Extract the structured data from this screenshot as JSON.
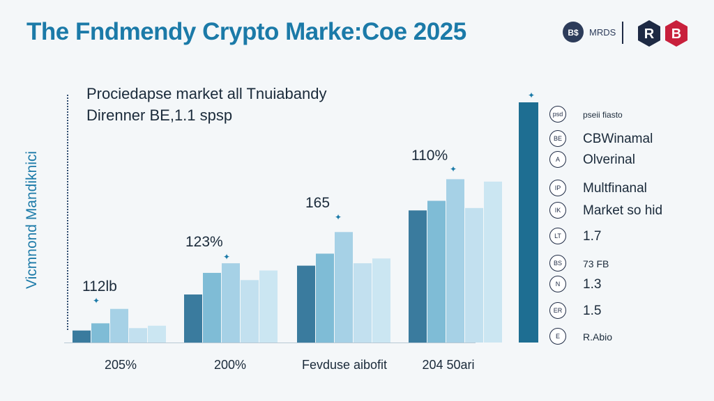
{
  "title": "The Fndmendy Crypto Marke:Coe 2025",
  "brand": {
    "badge_text": "B$",
    "name": "MRDS",
    "logo_r": "R",
    "logo_b": "B",
    "colors": {
      "r": "#1e2a44",
      "b": "#c8203c",
      "badge": "#2d3c5a"
    }
  },
  "subtitle_lines": [
    "Prociedapse market all Tnuiabandy",
    "Direnner BE,1.1 spsp"
  ],
  "y_axis_label": "Vicmnond Mandiknici",
  "legend": {
    "items": [
      {
        "icon": "psd",
        "label": "pseii fiasto",
        "size": "small"
      },
      {
        "icon": "BE",
        "label": "CBWinamal",
        "size": "normal"
      },
      {
        "icon": "A",
        "label": "Olverinal",
        "size": "normal"
      },
      {
        "icon": "IP",
        "label": "Multfinanal",
        "size": "normal"
      },
      {
        "icon": "IK",
        "label": "Market so hid",
        "size": "normal"
      },
      {
        "icon": "LT",
        "label": "1.7",
        "size": "normal"
      },
      {
        "icon": "BS",
        "label": "73 FB",
        "size": "mid"
      },
      {
        "icon": "N",
        "label": "1.3",
        "size": "normal"
      },
      {
        "icon": "ER",
        "label": "1.5",
        "size": "normal"
      },
      {
        "icon": "E",
        "label": "R.Abio",
        "size": "mid"
      }
    ]
  },
  "chart_data": {
    "type": "bar",
    "title": "The Fndmendy Crypto Marke:Coe 2025",
    "ylabel": "Vicmnond Mandiknici",
    "xlabel": "",
    "ylim": [
      0,
      100
    ],
    "categories": [
      "205%",
      "200%",
      "Fevduse aibofit",
      "204 50ari"
    ],
    "group_labels": [
      "112lb",
      "123%",
      "165",
      "110%"
    ],
    "series": [
      {
        "name": "s1",
        "color": "#3a7b9e",
        "values": [
          5,
          20,
          32,
          55
        ]
      },
      {
        "name": "s2",
        "color": "#7fbcd6",
        "values": [
          8,
          29,
          37,
          59
        ]
      },
      {
        "name": "s3",
        "color": "#a6d1e6",
        "values": [
          14,
          33,
          46,
          68
        ]
      },
      {
        "name": "s4",
        "color": "#c2e0ef",
        "values": [
          6,
          26,
          33,
          56
        ]
      },
      {
        "name": "s5",
        "color": "#cbe6f2",
        "values": [
          7,
          30,
          35,
          67
        ]
      }
    ],
    "highlight_bar": {
      "label": "",
      "value": 100,
      "color": "#1e6e92"
    }
  }
}
